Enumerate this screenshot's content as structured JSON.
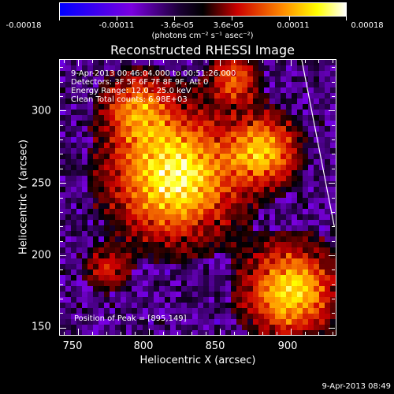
{
  "colorbar": {
    "tick_labels": [
      "-0.00018",
      "-0.00011",
      "-3.6e-05",
      "3.6e-05",
      "0.00011",
      "0.00018"
    ],
    "units": "(photons cm⁻² s⁻¹ asec⁻²)"
  },
  "plot": {
    "title": "Reconstructed RHESSI Image",
    "info_lines": [
      "9-Apr-2013 00:46:04.000 to 00:51:26.000",
      "Detectors: 3F 5F 6F 7F 8F 9F, Att 0",
      "Energy Range: 12.0 - 25.0 keV",
      "Clean    Total counts: 6.98E+03"
    ],
    "peak_label": "Position of Peak = [895,149]"
  },
  "chart_data": {
    "type": "heatmap",
    "title": "Reconstructed RHESSI Image",
    "xlabel": "Heliocentric X (arcsec)",
    "ylabel": "Heliocentric Y (arcsec)",
    "xlim": [
      737,
      932
    ],
    "ylim": [
      145,
      335
    ],
    "xticks": [
      750,
      800,
      850,
      900
    ],
    "yticks": [
      150,
      200,
      250,
      300
    ],
    "colorbar_range": [
      -0.00018,
      0.00018
    ],
    "colormap": [
      "#0000ff",
      "#7a00e0",
      "#000000",
      "#cc0000",
      "#ff8c00",
      "#ffff00",
      "#ffffff"
    ],
    "peak_position": [
      895,
      149
    ],
    "limb_line": {
      "x": [
        908,
        931
      ],
      "y": [
        335,
        220
      ]
    }
  },
  "timestamp": "9-Apr-2013 08:49"
}
